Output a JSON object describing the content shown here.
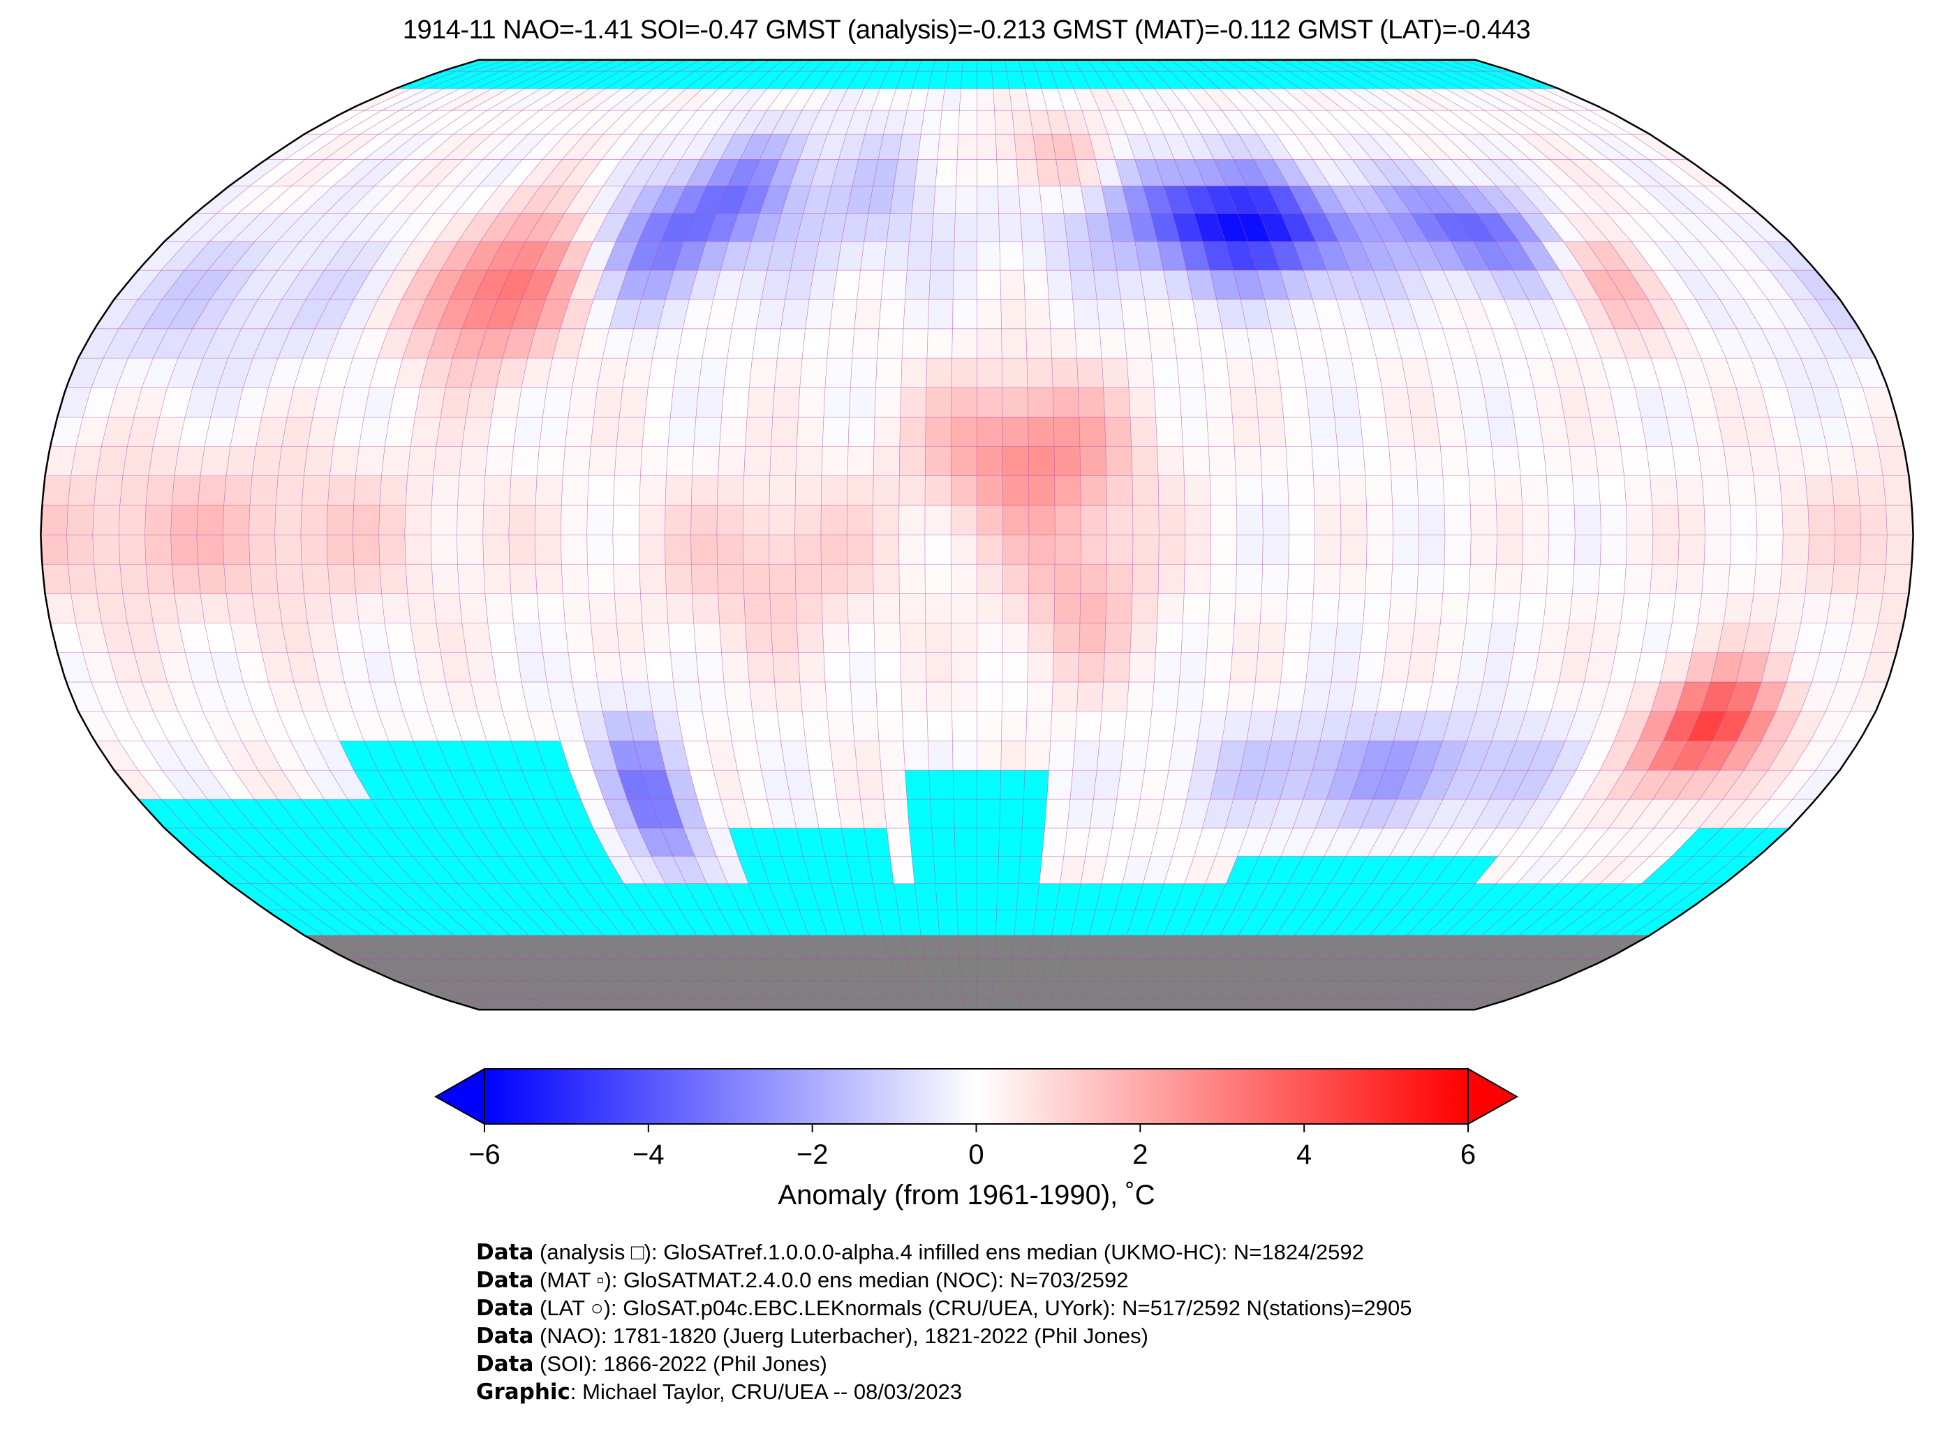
{
  "title": "1914-11 NAO=-1.41 SOI=-0.47 GMST (analysis)=-0.213 GMST (MAT)=-0.112 GMST (LAT)=-0.443",
  "colors": {
    "missing": "#00ffff",
    "land_ice": "#808080",
    "grid": "#b040b0",
    "cold": "#0000ff",
    "warm": "#ff0000"
  },
  "colorbar": {
    "min": -6,
    "max": 6,
    "ticks": [
      "−6",
      "−4",
      "−2",
      "0",
      "2",
      "4",
      "6"
    ],
    "tick_values": [
      -6,
      -4,
      -2,
      0,
      2,
      4,
      6
    ],
    "label": "Anomaly (from 1961-1990), ˚C",
    "extend": "both"
  },
  "footer": [
    {
      "bold": "Data",
      "text": " (analysis □): GloSATref.1.0.0.0-alpha.4 infilled ens median (UKMO-HC): N=1824/2592"
    },
    {
      "bold": "Data",
      "text": " (MAT ▫): GloSATMAT.2.4.0.0 ens median (NOC): N=703/2592"
    },
    {
      "bold": "Data",
      "text": " (LAT ○): GloSAT.p04c.EBC.LEKnormals (CRU/UEA, UYork): N=517/2592 N(stations)=2905"
    },
    {
      "bold": "Data",
      "text": " (NAO): 1781-1820 (Juerg Luterbacher), 1821-2022 (Phil Jones)"
    },
    {
      "bold": "Data",
      "text": " (SOI): 1866-2022 (Phil Jones)"
    },
    {
      "bold": "Graphic",
      "text": ": Michael Taylor, CRU/UEA -- 08/03/2023"
    }
  ]
}
